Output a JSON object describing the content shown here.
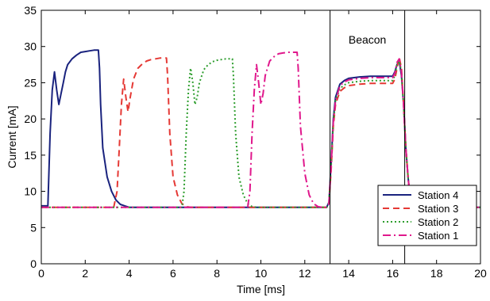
{
  "chart_data": {
    "type": "line",
    "title": "",
    "xlabel": "Time [ms]",
    "ylabel": "Current [mA]",
    "xlim": [
      0,
      20
    ],
    "ylim": [
      0,
      35
    ],
    "xticks": [
      0,
      2,
      4,
      6,
      8,
      10,
      12,
      14,
      16,
      18,
      20
    ],
    "yticks": [
      0,
      5,
      10,
      15,
      20,
      25,
      30,
      35
    ],
    "grid": false,
    "legend_position": "bottom-right",
    "annotations": [
      {
        "text": "Beacon"
      }
    ],
    "vertical_lines": [
      13.15,
      16.55
    ],
    "series": [
      {
        "name": "Station 4",
        "color": "#1a237e",
        "dash": "solid",
        "x": [
          0,
          0.3,
          0.4,
          0.5,
          0.6,
          0.7,
          0.8,
          0.9,
          1.0,
          1.1,
          1.2,
          1.4,
          1.6,
          1.8,
          2.0,
          2.2,
          2.4,
          2.6,
          2.65,
          2.7,
          2.8,
          3.0,
          3.2,
          3.4,
          3.6,
          3.8,
          4.0,
          6,
          8,
          10,
          12,
          13.0,
          13.1,
          13.2,
          13.3,
          13.4,
          13.6,
          13.8,
          14.0,
          14.5,
          15.0,
          15.5,
          16.0,
          16.1,
          16.2,
          16.3,
          16.4,
          16.5,
          16.6,
          16.7,
          16.8,
          17.0,
          18,
          19,
          20
        ],
        "y": [
          8,
          8,
          18,
          24,
          26.5,
          24,
          22,
          23.5,
          25,
          26.5,
          27.5,
          28.3,
          28.8,
          29.2,
          29.3,
          29.4,
          29.5,
          29.5,
          27,
          22,
          16,
          12,
          10,
          8.8,
          8.2,
          8,
          7.8,
          7.8,
          7.8,
          7.8,
          7.8,
          7.8,
          8.5,
          14,
          20,
          23,
          24.8,
          25.3,
          25.6,
          25.8,
          25.9,
          25.9,
          25.9,
          26.5,
          27.5,
          28,
          26,
          22,
          16,
          12,
          9,
          7.9,
          7.8,
          7.8,
          7.8
        ]
      },
      {
        "name": "Station 3",
        "color": "#e53935",
        "dash": "8,5",
        "x": [
          0,
          2,
          3.3,
          3.45,
          3.55,
          3.65,
          3.75,
          3.85,
          3.95,
          4.05,
          4.2,
          4.4,
          4.6,
          4.8,
          5.0,
          5.2,
          5.4,
          5.6,
          5.7,
          5.75,
          5.85,
          6.0,
          6.2,
          6.4,
          6.6,
          6.8,
          8,
          10,
          12,
          13.0,
          13.1,
          13.2,
          13.3,
          13.4,
          13.6,
          13.8,
          14.0,
          14.5,
          15.0,
          15.5,
          16.0,
          16.1,
          16.2,
          16.3,
          16.4,
          16.5,
          16.6,
          16.7,
          16.8,
          17.0,
          18,
          19,
          20
        ],
        "y": [
          7.8,
          7.8,
          7.8,
          10,
          16,
          22,
          25.5,
          23,
          21,
          23,
          25.5,
          27,
          27.6,
          28,
          28.2,
          28.3,
          28.4,
          28.4,
          28.4,
          26,
          18,
          12,
          9.5,
          8.3,
          7.9,
          7.8,
          7.8,
          7.8,
          7.8,
          7.8,
          8.3,
          13,
          19,
          22,
          23.8,
          24.3,
          24.6,
          24.8,
          24.9,
          24.9,
          24.9,
          25.5,
          27,
          28.5,
          27,
          22,
          16,
          12,
          9,
          7.9,
          7.8,
          7.8,
          7.8
        ]
      },
      {
        "name": "Station 2",
        "color": "#2e9e2e",
        "dash": "2,3",
        "x": [
          0,
          4,
          6.4,
          6.5,
          6.6,
          6.7,
          6.8,
          6.9,
          7.0,
          7.1,
          7.2,
          7.4,
          7.6,
          7.8,
          8.0,
          8.2,
          8.4,
          8.6,
          8.7,
          8.75,
          8.85,
          9.0,
          9.2,
          9.4,
          9.6,
          9.8,
          10,
          12,
          13.0,
          13.1,
          13.2,
          13.3,
          13.4,
          13.6,
          13.8,
          14.0,
          14.5,
          15.0,
          15.5,
          16.0,
          16.1,
          16.2,
          16.3,
          16.4,
          16.5,
          16.6,
          16.7,
          16.8,
          17.0,
          18,
          19,
          20
        ],
        "y": [
          7.8,
          7.8,
          7.8,
          10,
          18,
          24,
          27,
          25,
          22,
          23,
          25,
          26.8,
          27.5,
          27.9,
          28.1,
          28.2,
          28.3,
          28.3,
          28.3,
          26,
          18,
          12,
          9.5,
          8.3,
          7.9,
          7.8,
          7.8,
          7.8,
          7.8,
          8.4,
          13.5,
          19.5,
          22.5,
          24.2,
          24.7,
          25.0,
          25.2,
          25.3,
          25.3,
          25.3,
          26,
          27.5,
          28,
          26.5,
          22,
          16,
          12,
          9,
          7.9,
          7.8,
          7.8,
          7.8
        ]
      },
      {
        "name": "Station 1",
        "color": "#e0188c",
        "dash": "10,4,2,4",
        "x": [
          0,
          6,
          9.4,
          9.5,
          9.6,
          9.7,
          9.8,
          9.9,
          10.0,
          10.1,
          10.2,
          10.4,
          10.6,
          10.8,
          11.0,
          11.2,
          11.4,
          11.6,
          11.65,
          11.7,
          11.8,
          12.0,
          12.2,
          12.4,
          12.6,
          12.8,
          13.0,
          13.1,
          13.2,
          13.3,
          13.4,
          13.6,
          13.8,
          14.0,
          14.5,
          15.0,
          15.5,
          16.0,
          16.1,
          16.2,
          16.3,
          16.4,
          16.5,
          16.6,
          16.7,
          16.8,
          17.0,
          18,
          19,
          20
        ],
        "y": [
          7.8,
          7.8,
          7.8,
          10,
          18,
          24,
          27.5,
          25,
          22,
          23.5,
          26,
          28,
          28.6,
          29,
          29.1,
          29.2,
          29.2,
          29.2,
          29.2,
          27,
          19,
          12.5,
          9.5,
          8.3,
          7.9,
          7.8,
          7.8,
          8.3,
          13.5,
          19.5,
          22.5,
          24.6,
          25.1,
          25.4,
          25.6,
          25.7,
          25.7,
          25.7,
          26.3,
          27.8,
          28.3,
          26.5,
          22,
          16,
          12,
          9,
          7.9,
          7.8,
          7.8,
          7.8
        ]
      }
    ]
  }
}
